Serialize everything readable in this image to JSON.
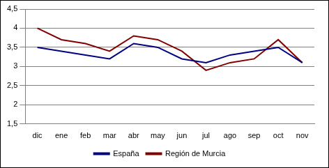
{
  "chart_data": {
    "type": "line",
    "categories": [
      "dic",
      "ene",
      "feb",
      "mar",
      "abr",
      "may",
      "jun",
      "jul",
      "ago",
      "sep",
      "oct",
      "nov"
    ],
    "series": [
      {
        "name": "España",
        "color": "#000080",
        "values": [
          3.5,
          3.4,
          3.3,
          3.2,
          3.6,
          3.5,
          3.2,
          3.1,
          3.3,
          3.4,
          3.5,
          3.1
        ]
      },
      {
        "name": "Región de Murcia",
        "color": "#800000",
        "values": [
          4.0,
          3.7,
          3.6,
          3.4,
          3.8,
          3.7,
          3.4,
          2.9,
          3.1,
          3.2,
          3.7,
          3.1
        ]
      }
    ],
    "ylim": [
      1.5,
      4.5
    ],
    "yticks": [
      {
        "value": 1.5,
        "label": "1,5"
      },
      2,
      {
        "value": 2.5,
        "label": "2,5"
      },
      3,
      {
        "value": 3.5,
        "label": "3,5"
      },
      4,
      {
        "value": 4.5,
        "label": "4,5"
      }
    ],
    "grid": true,
    "legend": "bottom"
  }
}
